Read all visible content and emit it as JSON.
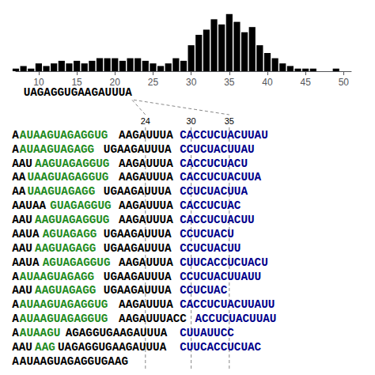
{
  "chart_data": {
    "type": "bar",
    "x": [
      7,
      8,
      9,
      10,
      11,
      12,
      13,
      14,
      15,
      16,
      17,
      18,
      19,
      20,
      21,
      22,
      23,
      24,
      25,
      26,
      27,
      28,
      29,
      30,
      31,
      32,
      33,
      34,
      35,
      36,
      37,
      38,
      39,
      40,
      41,
      42,
      43,
      44,
      45,
      46,
      47,
      48,
      49,
      50
    ],
    "values": [
      1,
      2,
      1,
      3,
      2,
      3,
      4,
      3,
      4,
      3,
      4,
      5,
      5,
      5,
      4,
      5,
      5,
      4,
      3,
      2,
      3,
      5,
      4,
      10,
      14,
      16,
      20,
      18,
      22,
      19,
      15,
      17,
      10,
      7,
      5,
      3,
      2,
      1,
      1,
      1,
      0,
      0,
      1,
      0
    ],
    "color": "#000000",
    "xlim": [
      7,
      51
    ],
    "xticks": [
      10,
      15,
      20,
      25,
      30,
      35,
      40,
      45,
      50
    ],
    "ylim": [
      0,
      23.76
    ],
    "tick_labels": "x",
    "grid": false,
    "annotations": [
      {
        "text": "UAGAGGUGAAGAUUUA",
        "color": "#000000"
      },
      {
        "text": "24",
        "x": 24
      },
      {
        "text": "30",
        "x": 30
      },
      {
        "text": "35",
        "x": 35
      },
      {
        "segments": [
          {
            "text": "A",
            "color": "#000000"
          },
          {
            "text": "AUAAGUAGAGGUG",
            "color": "#228B22"
          },
          {
            "text": "AAGAUUUA",
            "color": "#000000"
          },
          {
            "text": "CACCUCUACUUAU",
            "color": "#00008B"
          }
        ]
      },
      {
        "segments": [
          {
            "text": "A",
            "color": "#000000"
          },
          {
            "text": "AUAAGUAGAGG",
            "color": "#228B22"
          },
          {
            "text": "UGAAGAUUUA",
            "color": "#000000"
          },
          {
            "text": "CCUCUACUUAU",
            "color": "#00008B"
          }
        ]
      },
      {
        "segments": [
          {
            "text": "AAU",
            "color": "#000000"
          },
          {
            "text": "AAGUAGAGGUG",
            "color": "#228B22"
          },
          {
            "text": "AAGAUUUA",
            "color": "#000000"
          },
          {
            "text": "CACCUCUACU",
            "color": "#00008B"
          }
        ]
      },
      {
        "segments": [
          {
            "text": "AA",
            "color": "#000000"
          },
          {
            "text": "UAAGUAGAGGUG",
            "color": "#228B22"
          },
          {
            "text": "AAGAUUUA",
            "color": "#000000"
          },
          {
            "text": "CACCUCUACUUA",
            "color": "#00008B"
          }
        ]
      },
      {
        "segments": [
          {
            "text": "AA",
            "color": "#000000"
          },
          {
            "text": "UAAGUAGAGG",
            "color": "#228B22"
          },
          {
            "text": "UGAAGAUUUA",
            "color": "#000000"
          },
          {
            "text": "CCUCUACUUA",
            "color": "#00008B"
          }
        ]
      },
      {
        "segments": [
          {
            "text": "AAUAA",
            "color": "#000000"
          },
          {
            "text": "GUAGAGGUG",
            "color": "#228B22"
          },
          {
            "text": "AAGAUUUA",
            "color": "#000000"
          },
          {
            "text": "CACCUCUAC",
            "color": "#00008B"
          }
        ]
      },
      {
        "segments": [
          {
            "text": "AAU",
            "color": "#000000"
          },
          {
            "text": "AAGUAGAGGUG",
            "color": "#228B22"
          },
          {
            "text": "AAGAUUUA",
            "color": "#000000"
          },
          {
            "text": "CACCUCUACUU",
            "color": "#00008B"
          }
        ]
      },
      {
        "segments": [
          {
            "text": "AAUA",
            "color": "#000000"
          },
          {
            "text": "AGUAGAGG",
            "color": "#228B22"
          },
          {
            "text": "UGAAGAUUUA",
            "color": "#000000"
          },
          {
            "text": "CCUCUACU",
            "color": "#00008B"
          }
        ]
      },
      {
        "segments": [
          {
            "text": "AAU",
            "color": "#000000"
          },
          {
            "text": "AAGUAGAGG",
            "color": "#228B22"
          },
          {
            "text": "UGAAGAUUUA",
            "color": "#000000"
          },
          {
            "text": "CCUCUACUU",
            "color": "#00008B"
          }
        ]
      },
      {
        "segments": [
          {
            "text": "AAUA",
            "color": "#000000"
          },
          {
            "text": "AGUAGAGGUG",
            "color": "#228B22"
          },
          {
            "text": "AAGAUUUA",
            "color": "#000000"
          },
          {
            "text": "CUUCACCUCUACU",
            "color": "#00008B"
          }
        ]
      },
      {
        "segments": [
          {
            "text": "A",
            "color": "#000000"
          },
          {
            "text": "AUAAGUAGAGG",
            "color": "#228B22"
          },
          {
            "text": "UGAAGAUUUA",
            "color": "#000000"
          },
          {
            "text": "CCUCUACUUAUU",
            "color": "#00008B"
          }
        ]
      },
      {
        "segments": [
          {
            "text": "AAU",
            "color": "#000000"
          },
          {
            "text": "AAGUAGAGG",
            "color": "#228B22"
          },
          {
            "text": "UGAAGAUUUA",
            "color": "#000000"
          },
          {
            "text": "CCUCUAC",
            "color": "#00008B"
          }
        ]
      },
      {
        "segments": [
          {
            "text": "A",
            "color": "#000000"
          },
          {
            "text": "AUAAGUAGAGGUG",
            "color": "#228B22"
          },
          {
            "text": "AAGAUUUA",
            "color": "#000000"
          },
          {
            "text": "CACCUCUACUUAUU",
            "color": "#00008B"
          }
        ]
      },
      {
        "segments": [
          {
            "text": "A",
            "color": "#000000"
          },
          {
            "text": "AUAAGUAGAGGUG",
            "color": "#228B22"
          },
          {
            "text": "AAGAUUUACC",
            "color": "#000000"
          },
          {
            "text": "ACCUCUACUUAU",
            "color": "#00008B"
          }
        ]
      },
      {
        "segments": [
          {
            "text": "A",
            "color": "#000000"
          },
          {
            "text": "AUAAGU",
            "color": "#228B22"
          },
          {
            "text": "AGAGGUGAAGAUUUA",
            "color": "#000000"
          },
          {
            "text": "CUUAUUCC",
            "color": "#00008B"
          }
        ]
      },
      {
        "segments": [
          {
            "text": "AAU",
            "color": "#000000"
          },
          {
            "text": "AAG",
            "color": "#228B22"
          },
          {
            "text": "UAGAGGUGAAGAUUUA",
            "color": "#000000"
          },
          {
            "text": "CUUCACCUCUAC",
            "color": "#00008B"
          }
        ]
      },
      {
        "segments": [
          {
            "text": "A",
            "color": "#000000"
          },
          {
            "text": "AUAAGUAGAGGUGAAG",
            "color": "#000000"
          }
        ]
      }
    ]
  }
}
